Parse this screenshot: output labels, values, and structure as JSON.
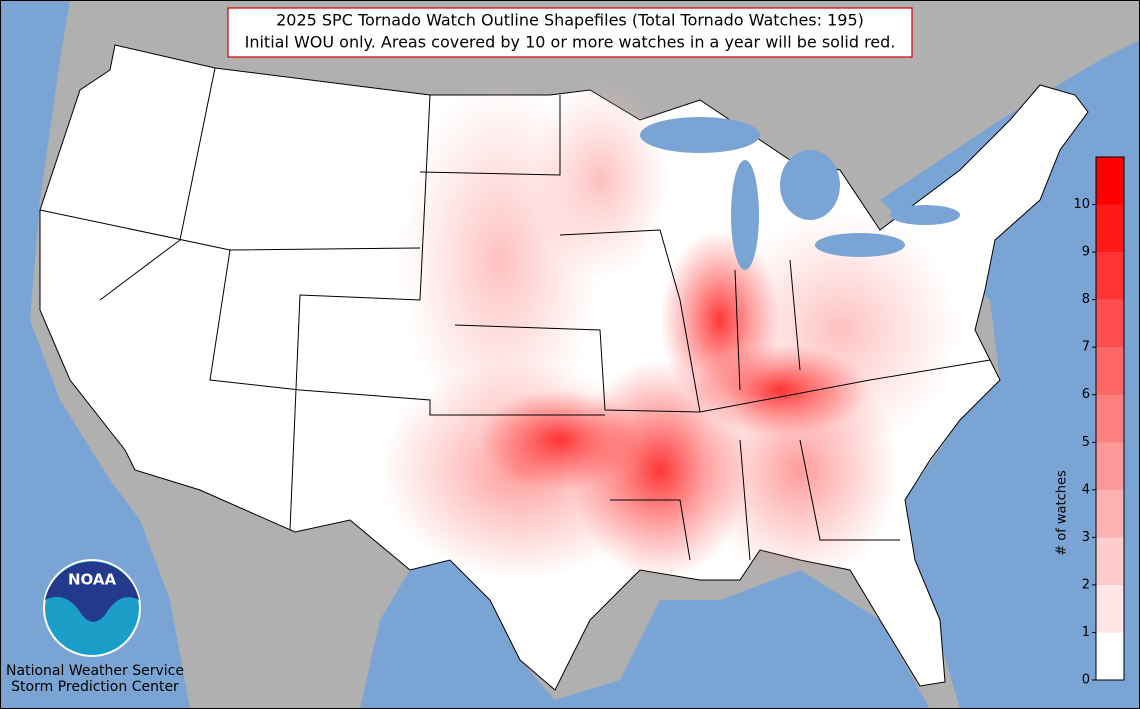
{
  "header": {
    "title": "2025 SPC Tornado Watch Outline Shapefiles (Total Tornado Watches: 195)",
    "subtitle": "Initial WOU only. Areas covered by 10 or more watches in a year will be solid red."
  },
  "colorbar": {
    "label": "# of watches",
    "lim": [
      0,
      11
    ],
    "ticks": [
      0,
      1,
      2,
      3,
      4,
      5,
      6,
      7,
      8,
      9,
      10
    ],
    "colors": [
      "#ffffff",
      "#ffe5e5",
      "#ffcccc",
      "#ffb2b2",
      "#ff9999",
      "#ff7f7f",
      "#ff6666",
      "#ff4c4c",
      "#ff3333",
      "#ff1919",
      "#ff0000"
    ]
  },
  "logo": {
    "text": "NOAA",
    "org": "National Weather Service",
    "center": "Storm Prediction Center"
  }
}
